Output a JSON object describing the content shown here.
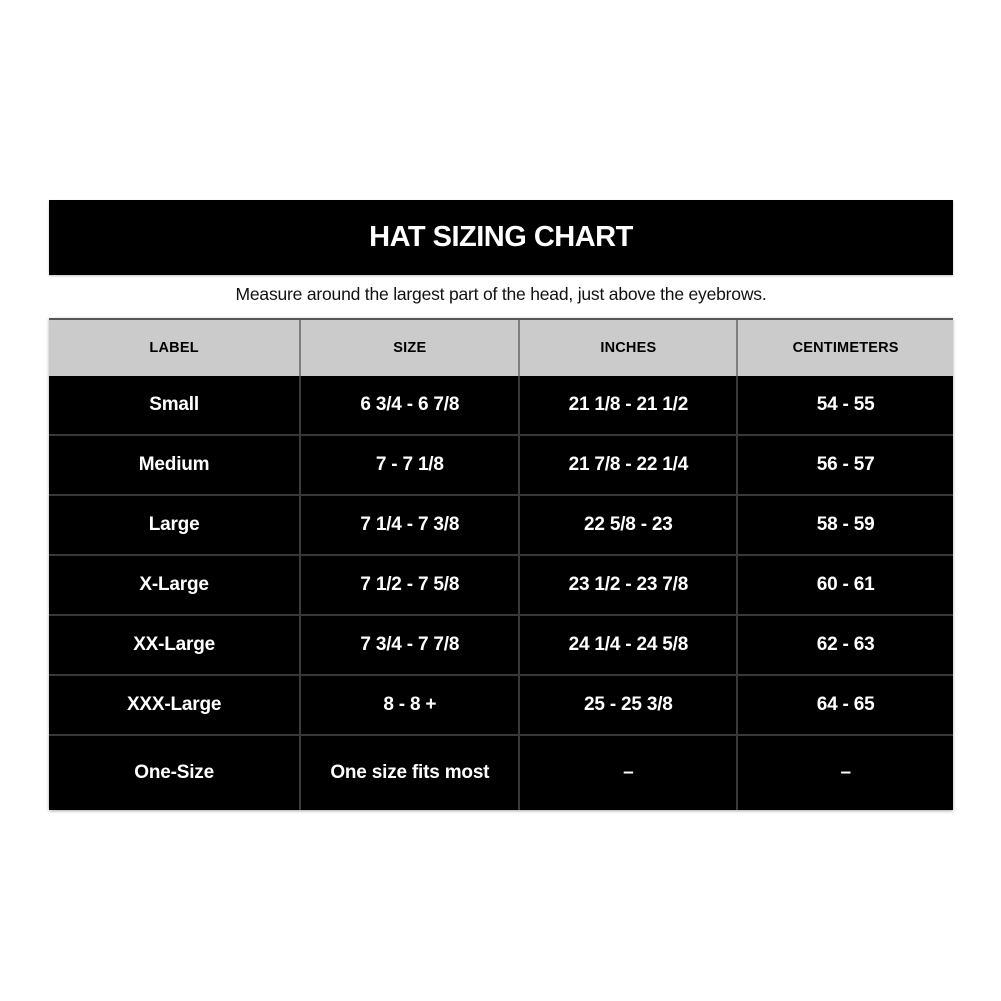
{
  "title": "HAT SIZING CHART",
  "subtitle": "Measure around the largest part of the head, just above the eyebrows.",
  "colors": {
    "banner_bg": "#000000",
    "banner_text": "#ffffff",
    "header_bg": "#cbcbcb",
    "header_text": "#000000",
    "row_bg": "#000000",
    "row_text": "#ffffff",
    "divider": "#3a3a3a"
  },
  "table": {
    "headers": [
      "LABEL",
      "SIZE",
      "INCHES",
      "CENTIMETERS"
    ],
    "rows": [
      [
        "Small",
        "6 3/4 - 6 7/8",
        "21 1/8 - 21 1/2",
        "54 - 55"
      ],
      [
        "Medium",
        "7 - 7 1/8",
        "21 7/8 - 22 1/4",
        "56 - 57"
      ],
      [
        "Large",
        "7 1/4 - 7 3/8",
        "22 5/8 - 23",
        "58 - 59"
      ],
      [
        "X-Large",
        "7 1/2 - 7 5/8",
        "23 1/2 - 23 7/8",
        "60 - 61"
      ],
      [
        "XX-Large",
        "7 3/4 - 7 7/8",
        "24 1/4 - 24 5/8",
        "62 - 63"
      ],
      [
        "XXX-Large",
        "8 - 8 +",
        "25 - 25 3/8",
        "64 - 65"
      ],
      [
        "One-Size",
        "One size fits most",
        "–",
        "–"
      ]
    ]
  },
  "chart_data": {
    "type": "table",
    "title": "HAT SIZING CHART",
    "subtitle": "Measure around the largest part of the head, just above the eyebrows.",
    "columns": [
      "LABEL",
      "SIZE",
      "INCHES",
      "CENTIMETERS"
    ],
    "rows": [
      [
        "Small",
        "6 3/4 - 6 7/8",
        "21 1/8 - 21 1/2",
        "54 - 55"
      ],
      [
        "Medium",
        "7 - 7 1/8",
        "21 7/8 - 22 1/4",
        "56 - 57"
      ],
      [
        "Large",
        "7 1/4 - 7 3/8",
        "22 5/8 - 23",
        "58 - 59"
      ],
      [
        "X-Large",
        "7 1/2 - 7 5/8",
        "23 1/2 - 23 7/8",
        "60 - 61"
      ],
      [
        "XX-Large",
        "7 3/4 - 7 7/8",
        "24 1/4 - 24 5/8",
        "62 - 63"
      ],
      [
        "XXX-Large",
        "8 - 8 +",
        "25 - 25 3/8",
        "64 - 65"
      ],
      [
        "One-Size",
        "One size fits most",
        "–",
        "–"
      ]
    ]
  }
}
